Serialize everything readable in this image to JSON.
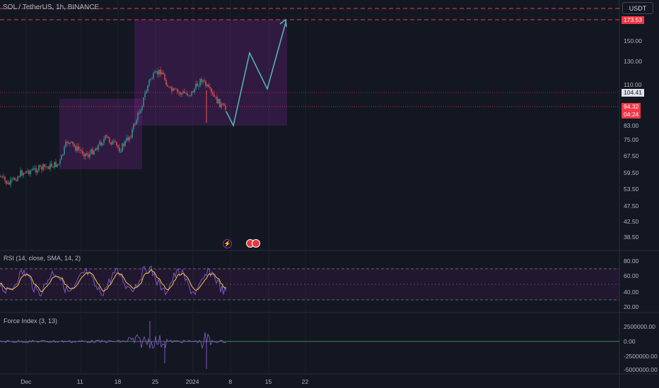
{
  "header": {
    "ticker": "SOL / TetherUS, 1h, BINANCE",
    "currency": "USDT"
  },
  "price_axis": {
    "ticks": [
      "150.00",
      "130.00",
      "110.00",
      "83.00",
      "75.00",
      "67.50",
      "59.50",
      "53.50",
      "47.50",
      "42.50",
      "38.50"
    ],
    "target_tag": "173.53",
    "current_tag": "104.41",
    "last_price_tag": "94.32",
    "countdown_tag": "04:24"
  },
  "rsi": {
    "label": "RSI (14, close, SMA, 14, 2)",
    "ticks": [
      "80.00",
      "60.00",
      "40.00",
      "20.00"
    ],
    "upper_band": 70,
    "lower_band": 30,
    "middle_band": 50
  },
  "force_index": {
    "label": "Force Index (3, 13)",
    "ticks": [
      "2500000.00",
      "0.00",
      "-2500000.00",
      "-5000000.00"
    ]
  },
  "time_axis": {
    "ticks": [
      "Dec",
      "11",
      "18",
      "25",
      "2024",
      "8",
      "15",
      "22"
    ]
  },
  "colors": {
    "background": "#131722",
    "up": "#26a69a",
    "down": "#ef5350",
    "projection": "#4db6ac",
    "zone": "#9c27b0",
    "rsi_line": "#7e57c2",
    "rsi_ma": "#f5c842",
    "force_line": "#7e57c2",
    "force_zero": "#4caf50",
    "alert_line": "#f23645"
  },
  "icons": {
    "event_lightning": "lightning-icon",
    "event_flags": "us-flag-icon"
  }
}
